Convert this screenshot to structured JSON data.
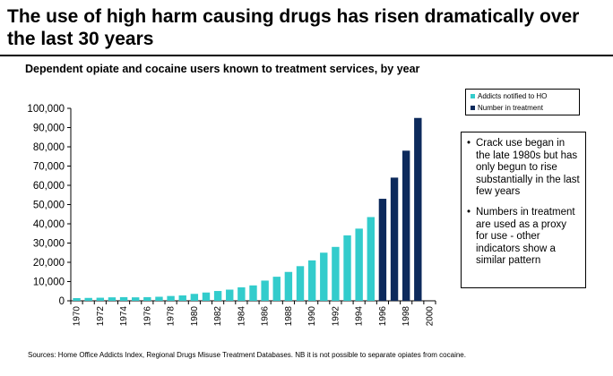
{
  "slide": {
    "title": "The use of high harm causing drugs has risen dramatically over the last 30 years",
    "source": "Sources: Home Office Addicts Index, Regional Drugs Misuse Treatment Databases. NB it is not possible to separate opiates from cocaine."
  },
  "notes": [
    "Crack use began in the late 1980s but has only begun to rise substantially in the last few years",
    "Numbers in treatment are used as a proxy for use - other indicators show a similar pattern"
  ],
  "colors": {
    "ho": "#33cccc",
    "treatment": "#0d2a5c"
  },
  "chart_data": {
    "type": "bar",
    "title": "Dependent opiate and cocaine users known to treatment services, by year",
    "xlabel": "",
    "ylabel": "",
    "ylim": [
      0,
      100000
    ],
    "ytick_labels": [
      "0",
      "10,000",
      "20,000",
      "30,000",
      "40,000",
      "50,000",
      "60,000",
      "70,000",
      "80,000",
      "90,000",
      "100,000"
    ],
    "grid": false,
    "legend_position": "top-right",
    "categories": [
      "1970",
      "1971",
      "1972",
      "1973",
      "1974",
      "1975",
      "1976",
      "1977",
      "1978",
      "1979",
      "1980",
      "1981",
      "1982",
      "1983",
      "1984",
      "1985",
      "1986",
      "1987",
      "1988",
      "1989",
      "1990",
      "1991",
      "1992",
      "1993",
      "1994",
      "1995",
      "1996",
      "1997",
      "1998",
      "1999",
      "2000"
    ],
    "xtick_labels": [
      "1970",
      "1972",
      "1974",
      "1976",
      "1978",
      "1980",
      "1982",
      "1984",
      "1986",
      "1988",
      "1990",
      "1992",
      "1994",
      "1996",
      "1998",
      "2000"
    ],
    "series": [
      {
        "name": "Addicts notified to HO",
        "color": "#33cccc",
        "values": [
          1400,
          1500,
          1600,
          1800,
          1900,
          1800,
          1900,
          2100,
          2500,
          2800,
          3600,
          4300,
          5100,
          5800,
          7000,
          8000,
          10500,
          12500,
          15000,
          18000,
          21000,
          25000,
          28000,
          34000,
          37500,
          43500,
          null,
          null,
          null,
          null,
          null
        ]
      },
      {
        "name": "Number in treatment",
        "color": "#0d2a5c",
        "values": [
          null,
          null,
          null,
          null,
          null,
          null,
          null,
          null,
          null,
          null,
          null,
          null,
          null,
          null,
          null,
          null,
          null,
          null,
          null,
          null,
          null,
          null,
          null,
          null,
          null,
          null,
          53000,
          64000,
          78000,
          95000,
          null
        ]
      }
    ]
  }
}
